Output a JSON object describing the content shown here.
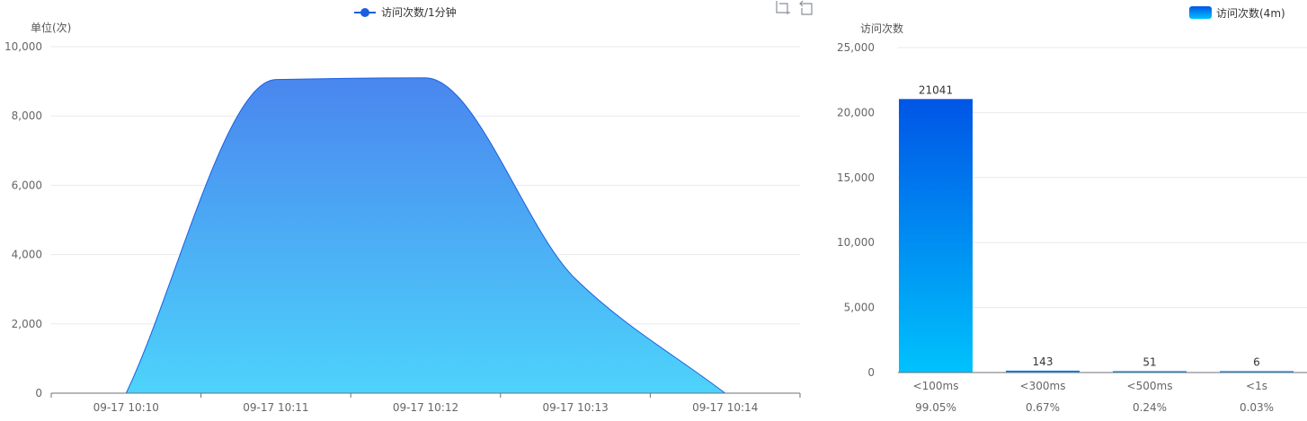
{
  "chart_data": [
    {
      "type": "area",
      "ylabel": "单位(次)",
      "legend": {
        "label": "访问次数/1分钟",
        "position": "top-center",
        "color": "#1a5fe0"
      },
      "x": [
        "09-17 10:10",
        "09-17 10:11",
        "09-17 10:12",
        "09-17 10:13",
        "09-17 10:14"
      ],
      "xlim": [
        "09-17 10:09:30",
        "09-17 10:14:30"
      ],
      "series": [
        {
          "name": "访问次数/1分钟",
          "x": [
            "09-17 10:10",
            "09-17 10:11",
            "09-17 10:12",
            "09-17 10:13",
            "09-17 10:14"
          ],
          "values": [
            0,
            9050,
            9100,
            3300,
            0
          ]
        }
      ],
      "ylim": [
        0,
        10000
      ],
      "yticks": [
        "0",
        "2,000",
        "4,000",
        "6,000",
        "8,000",
        "10,000"
      ],
      "grid": true,
      "colors": {
        "line": "#1a5fe0",
        "fill_top": "#4a86ee",
        "fill_bottom": "#4dd3fb"
      }
    },
    {
      "type": "bar",
      "ylabel": "访问次数",
      "legend": {
        "label": "访问次数(4m)",
        "position": "top-right"
      },
      "categories": [
        "<100ms",
        "<300ms",
        "<500ms",
        "<1s"
      ],
      "percentages": [
        "99.05%",
        "0.67%",
        "0.24%",
        "0.03%"
      ],
      "values": [
        21041,
        143,
        51,
        6
      ],
      "ylim": [
        0,
        25000
      ],
      "yticks": [
        "0",
        "5,000",
        "10,000",
        "15,000",
        "20,000",
        "25,000"
      ],
      "grid": true,
      "colors": {
        "bar_top": "#0055e6",
        "bar_bottom": "#00c2fc"
      }
    }
  ],
  "toolbox": {
    "icons": [
      "zoom-icon",
      "zoom-reset-icon"
    ]
  }
}
